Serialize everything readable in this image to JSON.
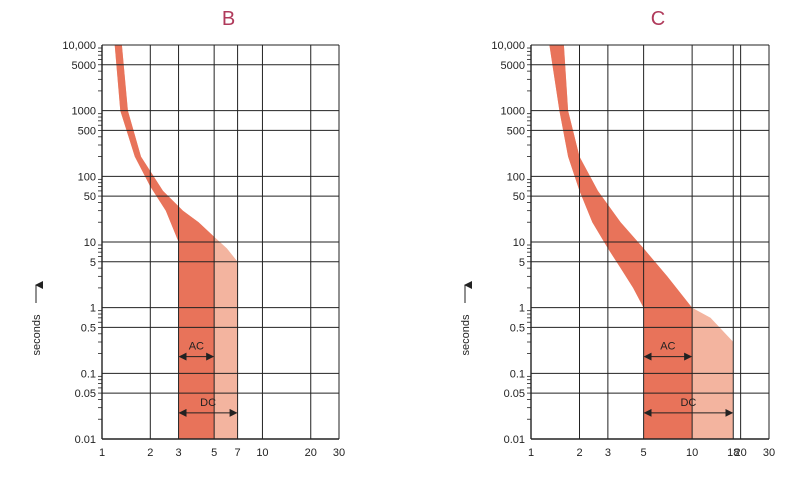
{
  "colors": {
    "band_dark": "#e8735a",
    "band_light": "#f3b49f",
    "title": "#b03a5b",
    "grid": "#222222"
  },
  "chart_data": [
    {
      "type": "area",
      "title": "B",
      "ylabel": "seconds",
      "x_scale": "log",
      "y_scale": "log",
      "xlim": [
        1,
        30
      ],
      "ylim": [
        0.01,
        10000
      ],
      "x_ticks": [
        1,
        2,
        3,
        5,
        7,
        10,
        20,
        30
      ],
      "x_tick_labels": [
        "1",
        "2",
        "3",
        "5",
        "7",
        "10",
        "20",
        "30"
      ],
      "y_ticks": [
        0.01,
        0.05,
        0.1,
        0.5,
        1,
        5,
        10,
        50,
        100,
        500,
        1000,
        5000,
        10000
      ],
      "y_tick_labels": [
        "0.01",
        "0.05",
        "0.1",
        "0.5",
        "1",
        "5",
        "10",
        "50",
        "100",
        "500",
        "1000",
        "5000",
        "10,000"
      ],
      "grid": true,
      "band_upper": [
        [
          1.33,
          10000
        ],
        [
          1.45,
          1000
        ],
        [
          1.75,
          200
        ],
        [
          2.4,
          60
        ],
        [
          3.2,
          30
        ],
        [
          4.0,
          20
        ],
        [
          5.0,
          12
        ],
        [
          6.0,
          8
        ],
        [
          7.0,
          5
        ],
        [
          7.0,
          0.01
        ]
      ],
      "band_lower": [
        [
          1.2,
          10000
        ],
        [
          1.3,
          1000
        ],
        [
          1.6,
          200
        ],
        [
          2.0,
          70
        ],
        [
          2.5,
          30
        ],
        [
          3.0,
          10
        ],
        [
          3.0,
          0.01
        ]
      ],
      "ac_limit": 5,
      "dc_limit": 7,
      "annotations": [
        {
          "text": "AC",
          "from": 3,
          "to": 5,
          "y": 0.18
        },
        {
          "text": "DC",
          "from": 3,
          "to": 7,
          "y": 0.025
        }
      ]
    },
    {
      "type": "area",
      "title": "C",
      "ylabel": "seconds",
      "x_scale": "log",
      "y_scale": "log",
      "xlim": [
        1,
        30
      ],
      "ylim": [
        0.01,
        10000
      ],
      "x_ticks": [
        1,
        2,
        3,
        5,
        10,
        18,
        20,
        30
      ],
      "x_tick_labels": [
        "1",
        "2",
        "3",
        "5",
        "10",
        "18",
        "20",
        "30"
      ],
      "y_ticks": [
        0.01,
        0.05,
        0.1,
        0.5,
        1,
        5,
        10,
        50,
        100,
        500,
        1000,
        5000,
        10000
      ],
      "y_tick_labels": [
        "0.01",
        "0.05",
        "0.1",
        "0.5",
        "1",
        "5",
        "10",
        "50",
        "100",
        "500",
        "1000",
        "5000",
        "10,000"
      ],
      "grid": true,
      "band_upper": [
        [
          1.6,
          10000
        ],
        [
          1.7,
          1000
        ],
        [
          2.0,
          200
        ],
        [
          2.6,
          60
        ],
        [
          3.6,
          20
        ],
        [
          5.0,
          8
        ],
        [
          7.0,
          3
        ],
        [
          10.0,
          1
        ],
        [
          13.0,
          0.7
        ],
        [
          18.0,
          0.3
        ],
        [
          18.0,
          0.01
        ]
      ],
      "band_lower": [
        [
          1.3,
          10000
        ],
        [
          1.5,
          1000
        ],
        [
          1.7,
          200
        ],
        [
          2.0,
          60
        ],
        [
          2.4,
          20
        ],
        [
          3.0,
          8
        ],
        [
          3.6,
          4
        ],
        [
          4.3,
          2
        ],
        [
          5.0,
          1
        ],
        [
          5.0,
          0.01
        ]
      ],
      "ac_limit": 10,
      "dc_limit": 18,
      "annotations": [
        {
          "text": "AC",
          "from": 5,
          "to": 10,
          "y": 0.18
        },
        {
          "text": "DC",
          "from": 5,
          "to": 18,
          "y": 0.025
        }
      ]
    }
  ]
}
